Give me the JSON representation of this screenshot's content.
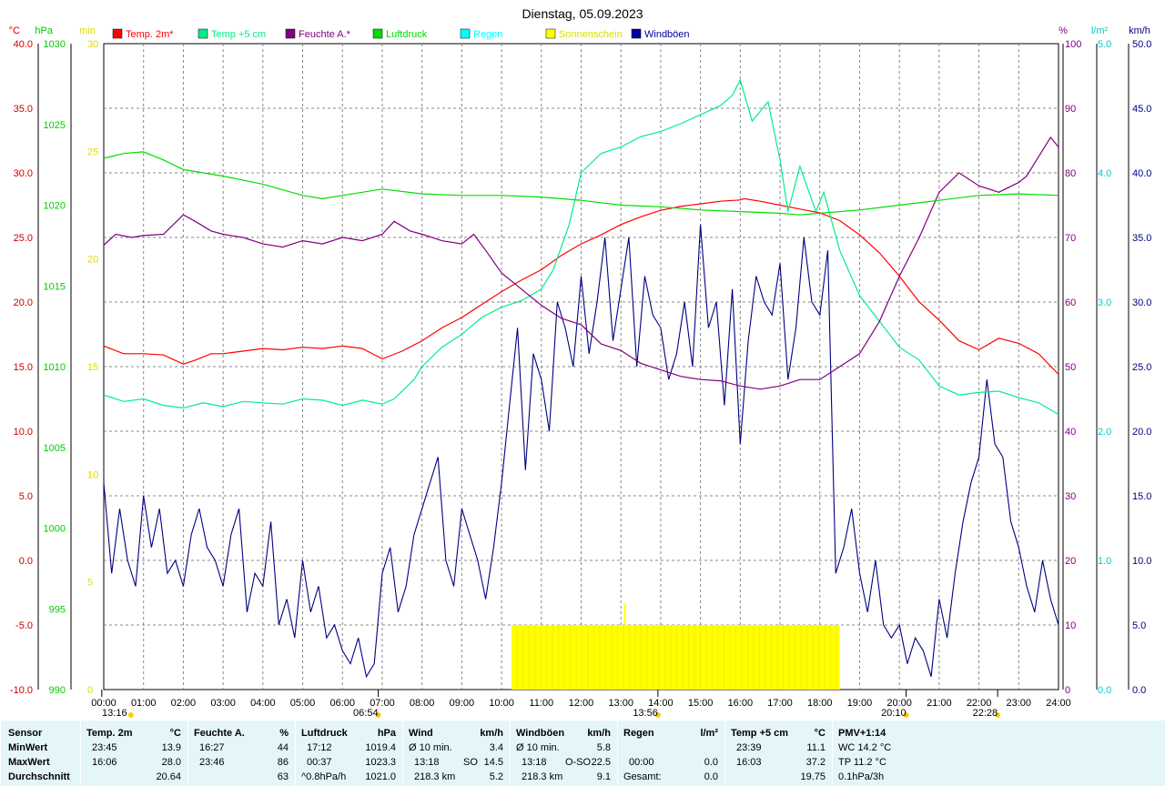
{
  "chart_data": {
    "type": "line",
    "title": "Dienstag, 05.09.2023",
    "x_ticks": [
      "00:00",
      "01:00",
      "02:00",
      "03:00",
      "04:00",
      "05:00",
      "06:00",
      "07:00",
      "08:00",
      "09:00",
      "10:00",
      "11:00",
      "12:00",
      "13:00",
      "14:00",
      "15:00",
      "16:00",
      "17:00",
      "18:00",
      "19:00",
      "20:00",
      "21:00",
      "22:00",
      "23:00",
      "24:00"
    ],
    "xlim": [
      0,
      24
    ],
    "grid": true,
    "legend_position": "top",
    "axes": {
      "temp": {
        "unit": "°C",
        "color": "#cc0000",
        "range": [
          -10,
          40
        ],
        "ticks": [
          "-10.0",
          "-5.0",
          "0.0",
          "5.0",
          "10.0",
          "15.0",
          "20.0",
          "25.0",
          "30.0",
          "35.0",
          "40.0"
        ]
      },
      "pressure": {
        "unit": "hPa",
        "color": "#00cc00",
        "range": [
          990,
          1030
        ],
        "ticks": [
          "990",
          "995",
          "1000",
          "1005",
          "1010",
          "1015",
          "1020",
          "1025",
          "1030"
        ]
      },
      "sunshine": {
        "unit": "min",
        "color": "#dddd00",
        "range": [
          0,
          30
        ],
        "ticks": [
          "0",
          "5",
          "10",
          "15",
          "20",
          "25",
          "30"
        ]
      },
      "humidity": {
        "unit": "%",
        "color": "#800080",
        "range": [
          0,
          100
        ],
        "ticks": [
          "0",
          "10",
          "20",
          "30",
          "40",
          "50",
          "60",
          "70",
          "80",
          "90",
          "100"
        ]
      },
      "rain": {
        "unit": "l/m²",
        "color": "#00cccc",
        "range": [
          0,
          5
        ],
        "ticks": [
          "0.0",
          "1.0",
          "2.0",
          "3.0",
          "4.0",
          "5.0"
        ]
      },
      "wind": {
        "unit": "km/h",
        "color": "#000080",
        "range": [
          0,
          50
        ],
        "ticks": [
          "0.0",
          "5.0",
          "10.0",
          "15.0",
          "20.0",
          "25.0",
          "30.0",
          "35.0",
          "40.0",
          "45.0",
          "50.0"
        ]
      }
    },
    "legend": [
      {
        "name": "Temp. 2m*",
        "color": "#ff0000"
      },
      {
        "name": "Temp +5 cm",
        "color": "#00ee88"
      },
      {
        "name": "Feuchte A.*",
        "color": "#800080"
      },
      {
        "name": "Luftdruck",
        "color": "#00dd00"
      },
      {
        "name": "Regen",
        "color": "#00ffff"
      },
      {
        "name": "Sonnenschein",
        "color": "#ffff00"
      },
      {
        "name": "Windböen",
        "color": "#0000a0"
      }
    ],
    "series": [
      {
        "name": "Temp. 2m*",
        "axis": "temp",
        "color": "#ff0000",
        "x": [
          0,
          0.5,
          1,
          1.5,
          2,
          2.3,
          2.7,
          3,
          3.5,
          4,
          4.5,
          5,
          5.5,
          6,
          6.5,
          7,
          7.5,
          8,
          8.5,
          9,
          9.5,
          10,
          10.5,
          11,
          11.5,
          12,
          12.5,
          13,
          13.5,
          14,
          14.5,
          15,
          15.5,
          16,
          16.1,
          16.5,
          17,
          17.5,
          18,
          18.5,
          19,
          19.5,
          20,
          20.5,
          21,
          21.5,
          22,
          22.5,
          23,
          23.5,
          24
        ],
        "y": [
          16.6,
          16.0,
          16.0,
          15.9,
          15.2,
          15.5,
          16.0,
          16.0,
          16.2,
          16.4,
          16.3,
          16.5,
          16.4,
          16.6,
          16.4,
          15.6,
          16.2,
          17.0,
          18.0,
          18.8,
          19.8,
          20.8,
          21.7,
          22.5,
          23.6,
          24.5,
          25.2,
          26.0,
          26.6,
          27.1,
          27.4,
          27.6,
          27.8,
          27.9,
          28.0,
          27.8,
          27.5,
          27.2,
          26.9,
          26.3,
          25.2,
          23.8,
          22.0,
          20.0,
          18.6,
          17.0,
          16.3,
          17.2,
          16.8,
          16.0,
          14.4
        ]
      },
      {
        "name": "Temp +5 cm",
        "axis": "temp",
        "color": "#00ee88",
        "x": [
          0,
          0.5,
          1,
          1.5,
          2,
          2.5,
          3,
          3.5,
          4,
          4.5,
          5,
          5.5,
          6,
          6.5,
          7,
          7.3,
          7.8,
          8,
          8.5,
          9,
          9.5,
          10,
          10.5,
          11,
          11.3,
          11.7,
          12,
          12.5,
          13,
          13.5,
          14,
          14.5,
          15,
          15.5,
          15.8,
          16.0,
          16.3,
          16.7,
          17,
          17.2,
          17.5,
          17.9,
          18.1,
          18.5,
          19,
          19.5,
          20,
          20.5,
          21,
          21.5,
          22,
          22.5,
          23,
          23.5,
          24
        ],
        "y": [
          12.8,
          12.3,
          12.5,
          12.0,
          11.8,
          12.2,
          11.9,
          12.3,
          12.2,
          12.1,
          12.5,
          12.4,
          12.0,
          12.4,
          12.1,
          12.5,
          14.0,
          15.0,
          16.5,
          17.5,
          18.8,
          19.6,
          20.1,
          21.0,
          22.5,
          26.0,
          30.0,
          31.5,
          32.0,
          32.8,
          33.2,
          33.8,
          34.5,
          35.2,
          36.0,
          37.2,
          34.0,
          35.5,
          31.0,
          27.0,
          30.5,
          27.0,
          28.5,
          24.0,
          20.5,
          18.5,
          16.5,
          15.5,
          13.5,
          12.8,
          13.0,
          13.1,
          12.6,
          12.2,
          11.3
        ]
      },
      {
        "name": "Feuchte A.*",
        "axis": "humidity",
        "color": "#800080",
        "x": [
          0,
          0.3,
          0.7,
          1,
          1.5,
          2,
          2.3,
          2.7,
          3,
          3.5,
          4,
          4.5,
          5,
          5.5,
          6,
          6.5,
          7,
          7.3,
          7.7,
          8,
          8.5,
          9,
          9.3,
          9.6,
          10,
          10.5,
          11,
          11.5,
          12,
          12.5,
          13,
          13.5,
          14,
          14.5,
          15,
          15.5,
          16,
          16.5,
          17,
          17.5,
          18,
          18.5,
          19,
          19.5,
          20,
          20.5,
          21,
          21.5,
          22,
          22.5,
          23,
          23.2,
          23.5,
          23.8,
          24
        ],
        "y": [
          68.8,
          70.5,
          70.0,
          70.3,
          70.5,
          73.5,
          72.5,
          71.0,
          70.5,
          70.0,
          69.0,
          68.5,
          69.5,
          69.0,
          70.0,
          69.5,
          70.5,
          72.5,
          71.0,
          70.5,
          69.5,
          69.0,
          70.5,
          68.0,
          64.5,
          62.0,
          59.5,
          57.5,
          56.5,
          53.5,
          52.5,
          50.5,
          49.5,
          48.5,
          48.0,
          47.8,
          47.0,
          46.5,
          47.0,
          48.0,
          48.0,
          50.0,
          52.0,
          57.0,
          64.0,
          70.0,
          77.0,
          80.0,
          78.0,
          77.0,
          78.5,
          79.5,
          82.5,
          85.5,
          84.0
        ]
      },
      {
        "name": "Luftdruck",
        "axis": "pressure",
        "color": "#00dd00",
        "x": [
          0,
          0.5,
          1,
          1.5,
          2,
          3,
          4,
          5,
          5.5,
          6,
          7,
          8,
          9,
          10,
          11,
          12,
          13,
          14,
          15,
          16,
          17,
          17.5,
          18,
          19,
          20,
          21,
          22,
          23,
          24
        ],
        "y": [
          1022.9,
          1023.2,
          1023.3,
          1022.8,
          1022.2,
          1021.8,
          1021.3,
          1020.6,
          1020.4,
          1020.6,
          1021.0,
          1020.7,
          1020.6,
          1020.6,
          1020.5,
          1020.3,
          1020.0,
          1019.9,
          1019.7,
          1019.6,
          1019.5,
          1019.4,
          1019.5,
          1019.7,
          1020.0,
          1020.3,
          1020.6,
          1020.7,
          1020.6
        ]
      }
    ],
    "wind_gusts": {
      "name": "Windböen",
      "axis": "wind",
      "color": "#000080",
      "x": [
        0,
        0.2,
        0.4,
        0.6,
        0.8,
        1,
        1.2,
        1.4,
        1.6,
        1.8,
        2,
        2.2,
        2.4,
        2.6,
        2.8,
        3,
        3.2,
        3.4,
        3.6,
        3.8,
        4,
        4.2,
        4.4,
        4.6,
        4.8,
        5,
        5.2,
        5.4,
        5.6,
        5.8,
        6,
        6.2,
        6.4,
        6.6,
        6.8,
        7,
        7.2,
        7.4,
        7.6,
        7.8,
        8,
        8.2,
        8.4,
        8.6,
        8.8,
        9,
        9.2,
        9.4,
        9.6,
        9.8,
        10,
        10.2,
        10.4,
        10.6,
        10.8,
        11,
        11.2,
        11.4,
        11.6,
        11.8,
        12,
        12.2,
        12.4,
        12.6,
        12.8,
        13,
        13.2,
        13.4,
        13.6,
        13.8,
        14,
        14.2,
        14.4,
        14.6,
        14.8,
        15,
        15.2,
        15.4,
        15.6,
        15.8,
        16,
        16.2,
        16.4,
        16.6,
        16.8,
        17,
        17.2,
        17.4,
        17.6,
        17.8,
        18,
        18.2,
        18.4,
        18.6,
        18.8,
        19,
        19.2,
        19.4,
        19.6,
        19.8,
        20,
        20.2,
        20.4,
        20.6,
        20.8,
        21,
        21.2,
        21.4,
        21.6,
        21.8,
        22,
        22.2,
        22.4,
        22.6,
        22.8,
        23,
        23.2,
        23.4,
        23.6,
        23.8,
        24
      ],
      "y": [
        16,
        9,
        14,
        10,
        8,
        15,
        11,
        14,
        9,
        10,
        8,
        12,
        14,
        11,
        10,
        8,
        12,
        14,
        6,
        9,
        8,
        13,
        5,
        7,
        4,
        10,
        6,
        8,
        4,
        5,
        3,
        2,
        4,
        1,
        2,
        9,
        11,
        6,
        8,
        12,
        14,
        16,
        18,
        10,
        8,
        14,
        12,
        10,
        7,
        11,
        16,
        22,
        28,
        17,
        26,
        24,
        20,
        30,
        28,
        25,
        32,
        26,
        30,
        35,
        27,
        31,
        35,
        25,
        32,
        29,
        28,
        24,
        26,
        30,
        25,
        36,
        28,
        30,
        22,
        31,
        19,
        27,
        32,
        30,
        29,
        33,
        24,
        28,
        35,
        30,
        29,
        34,
        9,
        11,
        14,
        9,
        6,
        10,
        5,
        4,
        5,
        2,
        4,
        3,
        1,
        7,
        4,
        9,
        13,
        16,
        18,
        24,
        19,
        18,
        13,
        11,
        8,
        6,
        10,
        7,
        5
      ]
    },
    "sunshine": {
      "name": "Sonnenschein",
      "axis": "sunshine",
      "color": "#ffff00",
      "x_start": 10.25,
      "x_end": 18.5,
      "value": 3.0,
      "peak_x": 13.1,
      "peak_value": 4.0
    },
    "markers": [
      {
        "label": "13:16",
        "x": -0.05
      },
      {
        "label": "06:54",
        "x": 6.9
      },
      {
        "label": "13:56",
        "x": 13.93
      },
      {
        "label": "20:10",
        "x": 20.17
      },
      {
        "label": "22:28",
        "x": 22.47
      }
    ]
  },
  "table": {
    "sensor": {
      "header": "Sensor",
      "rows": [
        "MinWert",
        "MaxWert",
        "Durchschnitt"
      ]
    },
    "temp2m": {
      "header": "Temp. 2m",
      "unit": "°C",
      "times": [
        "23:45",
        "16:06",
        ""
      ],
      "values": [
        "13.9",
        "28.0",
        "20.64"
      ]
    },
    "humidity": {
      "header": "Feuchte A.",
      "unit": "%",
      "times": [
        "16:27",
        "23:46",
        ""
      ],
      "values": [
        "44",
        "86",
        "63"
      ]
    },
    "pressure": {
      "header": "Luftdruck",
      "unit": "hPa",
      "times": [
        "17:12",
        "00:37",
        "^0.8hPa/h"
      ],
      "values": [
        "1019.4",
        "1023.3",
        "1021.0"
      ]
    },
    "wind": {
      "header": "Wind",
      "unit": "km/h",
      "labels": [
        "Ø 10 min.",
        "13:18",
        "218.3 km"
      ],
      "dirs": [
        "",
        "SO",
        ""
      ],
      "values": [
        "3.4",
        "14.5",
        "5.2"
      ]
    },
    "gusts": {
      "header": "Windböen",
      "unit": "km/h",
      "labels": [
        "Ø 10 min.",
        "13:18",
        "218.3 km"
      ],
      "dirs": [
        "",
        "O-SO",
        ""
      ],
      "values": [
        "5.8",
        "22.5",
        "9.1"
      ]
    },
    "rain": {
      "header": "Regen",
      "unit": "l/m²",
      "labels": [
        "",
        "00:00",
        "Gesamt:"
      ],
      "values": [
        "",
        "0.0",
        "0.0"
      ]
    },
    "temp5": {
      "header": "Temp +5 cm",
      "unit": "°C",
      "times": [
        "23:39",
        "16:03",
        ""
      ],
      "values": [
        "11.1",
        "37.2",
        "19.75"
      ]
    },
    "pmv": {
      "header": "PMV+1:14",
      "lines": [
        "WC 14.2 °C",
        "TP 11.2 °C",
        "0.1hPa/3h"
      ]
    }
  }
}
